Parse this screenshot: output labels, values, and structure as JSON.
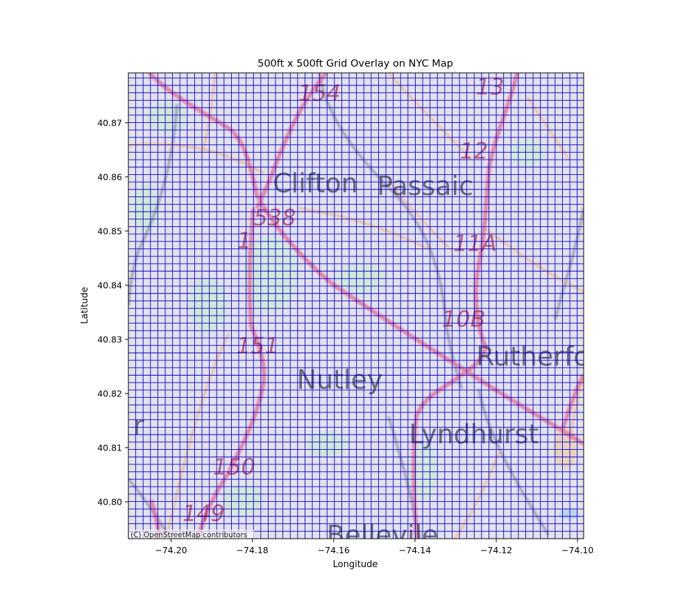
{
  "chart_data": {
    "type": "map",
    "title": "500ft x 500ft Grid Overlay on NYC Map",
    "xlabel": "Longitude",
    "ylabel": "Latitude",
    "xlim": [
      -74.2105,
      -74.0985
    ],
    "ylim": [
      40.7932,
      40.8792
    ],
    "xticks": [
      -74.2,
      -74.18,
      -74.16,
      -74.14,
      -74.12,
      -74.1
    ],
    "xtick_labels": [
      "−74.20",
      "−74.18",
      "−74.16",
      "−74.14",
      "−74.12",
      "−74.10"
    ],
    "yticks": [
      40.8,
      40.81,
      40.82,
      40.83,
      40.84,
      40.85,
      40.86,
      40.87
    ],
    "ytick_labels": [
      "40.80",
      "40.81",
      "40.82",
      "40.83",
      "40.84",
      "40.85",
      "40.86",
      "40.87"
    ],
    "grid": {
      "cell_size": "500ft x 500ft",
      "start_lon": -74.2105,
      "start_lat": 40.7932,
      "step_lon": 0.00181,
      "step_lat": 0.001372,
      "color": "#0000cc"
    },
    "place_labels": [
      {
        "text": "Clifton",
        "lon": -74.1645,
        "lat": 40.8585
      },
      {
        "text": "Passaic",
        "lon": -74.1375,
        "lat": 40.858
      },
      {
        "text": "Nutley",
        "lon": -74.1585,
        "lat": 40.8222
      },
      {
        "text": "Rutherfo",
        "lon": -74.111,
        "lat": 40.8265
      },
      {
        "text": "Lyndhurst",
        "lon": -74.1255,
        "lat": 40.8122
      },
      {
        "text": "Bellevile",
        "lon": -74.148,
        "lat": 40.7935
      },
      {
        "text": "r",
        "lon": -74.208,
        "lat": 40.8138
      }
    ],
    "route_labels": [
      {
        "text": "154",
        "lon": -74.1635,
        "lat": 40.8752
      },
      {
        "text": "13",
        "lon": -74.1215,
        "lat": 40.8764
      },
      {
        "text": "12",
        "lon": -74.1255,
        "lat": 40.8645
      },
      {
        "text": "538",
        "lon": -74.1745,
        "lat": 40.8522
      },
      {
        "text": "1",
        "lon": -74.182,
        "lat": 40.848
      },
      {
        "text": "11A",
        "lon": -74.1252,
        "lat": 40.8475
      },
      {
        "text": "10B",
        "lon": -74.128,
        "lat": 40.8335
      },
      {
        "text": "151",
        "lon": -74.1787,
        "lat": 40.8286
      },
      {
        "text": "150",
        "lon": -74.1845,
        "lat": 40.8062
      },
      {
        "text": "149",
        "lon": -74.192,
        "lat": 40.7976
      }
    ],
    "attribution": "(C) OpenStreetMap contributors"
  }
}
